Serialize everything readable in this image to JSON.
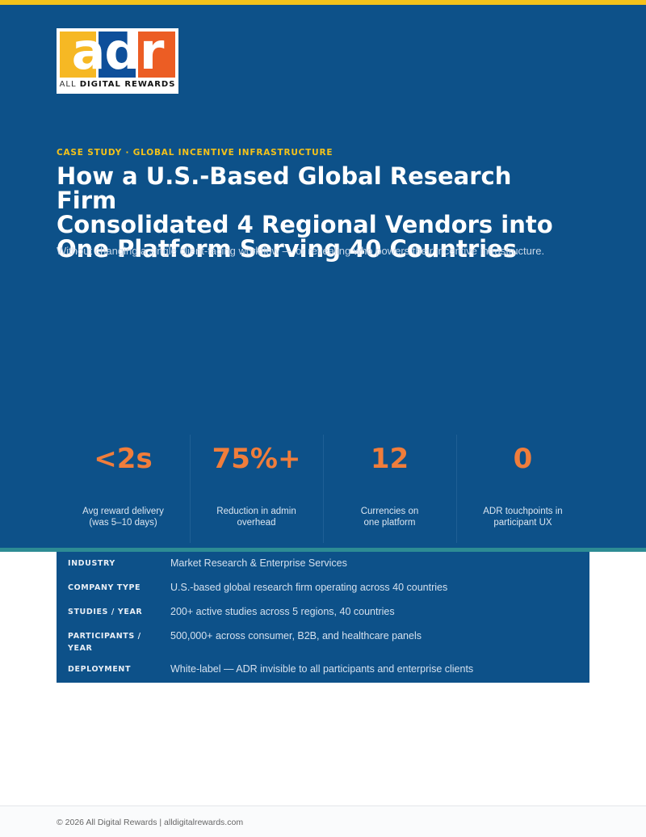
{
  "brand": {
    "logo_letters": "adr",
    "logo_word1": "ALL",
    "logo_word2": "DIGITAL REWARDS"
  },
  "header": {
    "eyebrow": "CASE STUDY · GLOBAL INCENTIVE INFRASTRUCTURE",
    "title_lines": [
      "How a U.S.-Based Global Research Firm",
      "Consolidated 4 Regional Vendors into",
      "One Platform Serving 40 Countries"
    ],
    "subtitle": "Without changing a single client-facing workflow — or revealing who powers their incentive infrastructure."
  },
  "stats": [
    {
      "value": "<2s",
      "label_lines": [
        "Avg reward delivery",
        "(was 5–10 days)"
      ]
    },
    {
      "value": "75%+",
      "label_lines": [
        "Reduction in admin",
        "overhead"
      ]
    },
    {
      "value": "12",
      "label_lines": [
        "Currencies on",
        "one platform"
      ]
    },
    {
      "value": "0",
      "label_lines": [
        "ADR touchpoints in",
        "participant UX"
      ]
    }
  ],
  "profile": [
    {
      "key_lines": [
        "INDUSTRY"
      ],
      "value": "Market Research & Enterprise Services"
    },
    {
      "key_lines": [
        "COMPANY TYPE"
      ],
      "value": "U.S.-based global research firm operating across 40 countries"
    },
    {
      "key_lines": [
        "STUDIES / YEAR"
      ],
      "value": "200+ active studies across 5 regions, 40 countries"
    },
    {
      "key_lines": [
        "PARTICIPANTS /",
        "YEAR"
      ],
      "value": "500,000+ across consumer, B2B, and healthcare panels"
    },
    {
      "key_lines": [
        "DEPLOYMENT"
      ],
      "value": "White-label — ADR invisible to all participants and enterprise clients"
    }
  ],
  "footer": {
    "text": "© 2026 All Digital Rewards  |  alldigitalrewards.com"
  },
  "colors": {
    "navy": "#0d5189",
    "accent_orange": "#f07d3b",
    "accent_yellow": "#f4c21a",
    "teal": "#2d8c94"
  }
}
